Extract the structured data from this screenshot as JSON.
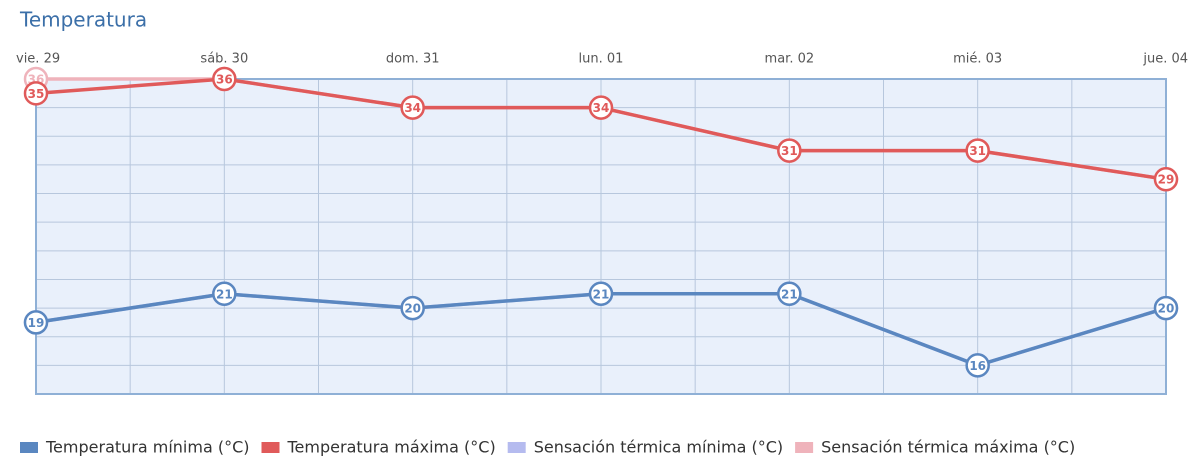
{
  "chart_data": {
    "type": "line",
    "title": "Temperatura",
    "categories": [
      "vie. 29",
      "sáb. 30",
      "dom. 31",
      "lun. 01",
      "mar. 02",
      "mié. 03",
      "jue. 04"
    ],
    "series": [
      {
        "name": "Temperatura mínima (°C)",
        "color": "#5a87c0",
        "values": [
          19,
          21,
          20,
          21,
          21,
          16,
          20
        ]
      },
      {
        "name": "Temperatura máxima (°C)",
        "color": "#e05a5a",
        "values": [
          35,
          36,
          34,
          34,
          31,
          31,
          29
        ]
      },
      {
        "name": "Sensación térmica mínima (°C)",
        "color": "#b5bbef",
        "values": [
          19,
          21,
          20,
          21,
          21,
          16,
          20
        ]
      },
      {
        "name": "Sensación térmica máxima (°C)",
        "color": "#efb3bb",
        "values": [
          36,
          36,
          34,
          34,
          31,
          31,
          29
        ]
      }
    ],
    "ylim": [
      14,
      36
    ],
    "yticks": [
      14,
      16,
      18,
      20,
      22,
      24,
      26,
      28,
      30,
      32,
      34,
      36
    ],
    "grid": true
  }
}
